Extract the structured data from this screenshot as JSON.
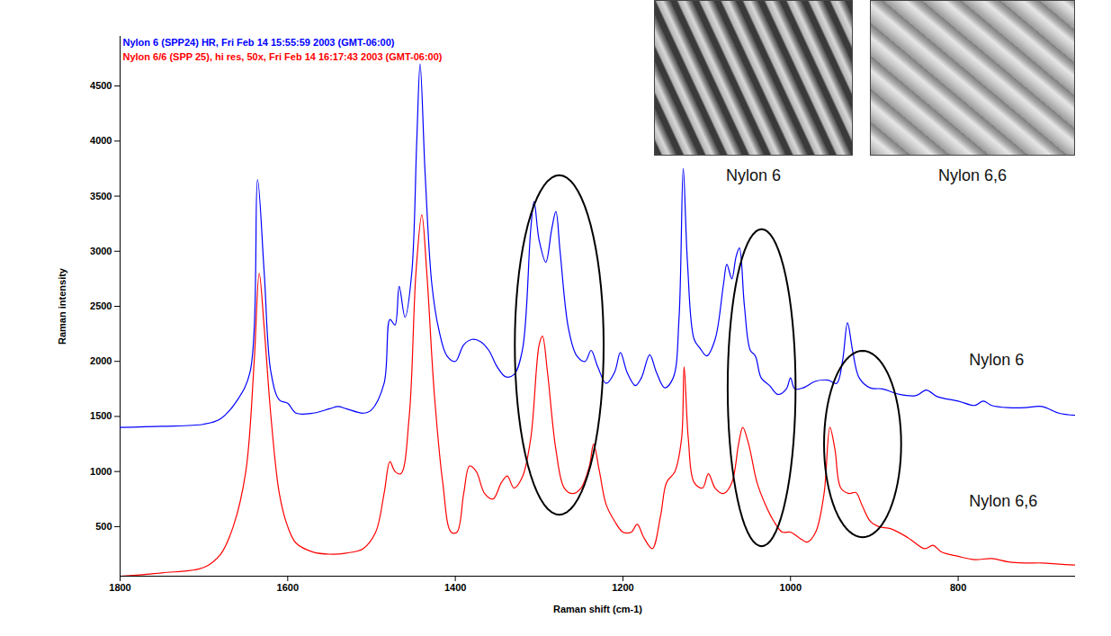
{
  "chart_data": {
    "type": "line",
    "xlabel": "Raman shift (cm-1)",
    "ylabel": "Raman intensity",
    "legend": "top-left",
    "xlim": [
      1800,
      660
    ],
    "xticks": [
      1800,
      1600,
      1400,
      1200,
      1000,
      800
    ],
    "ylim": [
      50,
      4950
    ],
    "yticks": [
      500,
      1000,
      1500,
      2000,
      2500,
      3000,
      3500,
      4000,
      4500
    ],
    "series": [
      {
        "name": "Nylon 6 (SPP24) HR, Fri Feb 14 15:55:59 2003 (GMT-06:00)",
        "color": "#0000ff",
        "x": [
          1800,
          1750,
          1700,
          1680,
          1660,
          1645,
          1636,
          1628,
          1620,
          1610,
          1600,
          1590,
          1570,
          1550,
          1540,
          1530,
          1510,
          1500,
          1485,
          1478,
          1472,
          1467,
          1460,
          1452,
          1446,
          1442,
          1436,
          1428,
          1420,
          1410,
          1400,
          1390,
          1380,
          1370,
          1360,
          1350,
          1340,
          1330,
          1320,
          1310,
          1306,
          1300,
          1292,
          1285,
          1280,
          1275,
          1265,
          1255,
          1245,
          1238,
          1230,
          1220,
          1210,
          1203,
          1195,
          1185,
          1178,
          1168,
          1160,
          1150,
          1140,
          1133,
          1128,
          1123,
          1115,
          1108,
          1100,
          1090,
          1080,
          1076,
          1070,
          1065,
          1061,
          1055,
          1048,
          1042,
          1035,
          1025,
          1015,
          1005,
          1000,
          995,
          985,
          970,
          955,
          945,
          938,
          932,
          926,
          918,
          905,
          890,
          870,
          850,
          838,
          825,
          800,
          780,
          770,
          760,
          740,
          720,
          700,
          680,
          660
        ],
        "values": [
          1400,
          1410,
          1430,
          1480,
          1650,
          1900,
          3650,
          2800,
          1900,
          1650,
          1620,
          1530,
          1530,
          1570,
          1590,
          1570,
          1530,
          1560,
          1800,
          2380,
          2330,
          2680,
          2400,
          2800,
          4000,
          4700,
          3700,
          2700,
          2300,
          2050,
          2000,
          2150,
          2200,
          2180,
          2100,
          1950,
          1860,
          1880,
          2100,
          3200,
          3450,
          3100,
          2900,
          3200,
          3360,
          3000,
          2300,
          2050,
          2000,
          2100,
          1950,
          1800,
          1900,
          2080,
          1900,
          1780,
          1850,
          2060,
          1900,
          1760,
          1850,
          2400,
          3750,
          2900,
          2200,
          2120,
          2050,
          2200,
          2700,
          2880,
          2750,
          2950,
          3030,
          2500,
          2100,
          2050,
          1850,
          1780,
          1700,
          1750,
          1850,
          1750,
          1760,
          1820,
          1830,
          1800,
          2000,
          2350,
          2100,
          1850,
          1760,
          1750,
          1700,
          1690,
          1740,
          1680,
          1640,
          1600,
          1640,
          1600,
          1580,
          1580,
          1590,
          1530,
          1510
        ]
      },
      {
        "name": "Nylon 6/6 (SPP 25), hi res, 50x, Fri Feb 14 16:17:43 2003 (GMT-06:00)",
        "color": "#ff0000",
        "x": [
          1800,
          1750,
          1700,
          1680,
          1665,
          1650,
          1640,
          1634,
          1628,
          1620,
          1610,
          1600,
          1590,
          1570,
          1550,
          1530,
          1510,
          1495,
          1485,
          1478,
          1472,
          1465,
          1455,
          1447,
          1440,
          1434,
          1425,
          1415,
          1405,
          1398,
          1390,
          1383,
          1375,
          1365,
          1355,
          1345,
          1338,
          1330,
          1320,
          1310,
          1300,
          1296,
          1290,
          1280,
          1270,
          1260,
          1250,
          1240,
          1235,
          1228,
          1220,
          1210,
          1200,
          1190,
          1183,
          1175,
          1165,
          1155,
          1148,
          1138,
          1130,
          1127,
          1122,
          1115,
          1105,
          1098,
          1090,
          1080,
          1070,
          1062,
          1057,
          1050,
          1040,
          1030,
          1020,
          1010,
          1000,
          990,
          980,
          970,
          960,
          953,
          947,
          940,
          930,
          922,
          915,
          905,
          895,
          880,
          860,
          840,
          830,
          820,
          800,
          780,
          760,
          740,
          720,
          700,
          680,
          660
        ],
        "values": [
          50,
          80,
          130,
          250,
          500,
          1000,
          2000,
          2800,
          2300,
          1500,
          800,
          500,
          350,
          270,
          250,
          260,
          300,
          450,
          800,
          1090,
          1000,
          980,
          1500,
          2800,
          3330,
          2800,
          1700,
          900,
          450,
          450,
          800,
          1050,
          1000,
          800,
          750,
          900,
          960,
          850,
          950,
          1300,
          2150,
          2230,
          1900,
          1200,
          850,
          800,
          850,
          1050,
          1250,
          1000,
          700,
          550,
          450,
          450,
          520,
          400,
          300,
          600,
          900,
          1000,
          1300,
          1950,
          1300,
          900,
          850,
          980,
          850,
          800,
          900,
          1250,
          1400,
          1250,
          900,
          700,
          550,
          450,
          450,
          400,
          360,
          450,
          800,
          1400,
          1200,
          850,
          800,
          810,
          700,
          550,
          500,
          480,
          400,
          300,
          330,
          270,
          230,
          200,
          210,
          180,
          170,
          170,
          160,
          150
        ]
      }
    ],
    "annotations": [
      {
        "text": "Nylon 6",
        "x": 787,
        "y": 2014
      },
      {
        "text": "Nylon 6,6",
        "x": 787,
        "y": 730
      }
    ],
    "ellipses": [
      {
        "x": [
          1329,
          1223
        ],
        "y": [
          608,
          3690
        ]
      },
      {
        "x": [
          1075,
          994
        ],
        "y": [
          322,
          3200
        ]
      },
      {
        "x": [
          960,
          868
        ],
        "y": [
          404,
          2096
        ]
      }
    ],
    "images": [
      {
        "caption": "Nylon 6"
      },
      {
        "caption": "Nylon 6,6"
      }
    ]
  }
}
